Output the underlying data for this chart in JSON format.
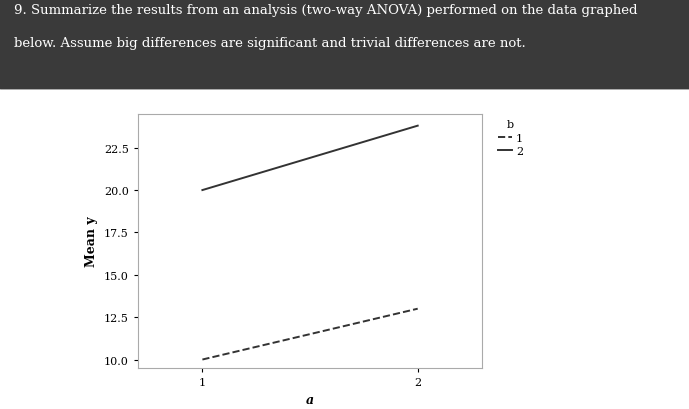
{
  "title_line1": "9. Summarize the results from an analysis (two-way ANOVA) performed on the data graphed",
  "title_line2": "below. Assume big differences are significant and trivial differences are not.",
  "xlabel": "a",
  "ylabel": "Mean y",
  "ylim": [
    9.5,
    24.5
  ],
  "xlim": [
    0.7,
    2.3
  ],
  "xticks": [
    1,
    2
  ],
  "yticks": [
    10.0,
    12.5,
    15.0,
    17.5,
    20.0,
    22.5
  ],
  "line_solid": {
    "x": [
      1,
      2
    ],
    "y": [
      20.0,
      23.8
    ],
    "color": "#333333",
    "linestyle": "solid",
    "linewidth": 1.4,
    "label": "2"
  },
  "line_dashed": {
    "x": [
      1,
      2
    ],
    "y": [
      10.0,
      13.0
    ],
    "color": "#333333",
    "linestyle": "dashed",
    "linewidth": 1.4,
    "label": "1"
  },
  "legend_title": "b",
  "outer_bg": "#3a3a3a",
  "inner_bg": "#ffffff",
  "plot_bg": "#ffffff",
  "text_color": "#ffffff",
  "title_fontsize": 9.5,
  "axis_fontsize": 9,
  "tick_fontsize": 8,
  "legend_fontsize": 8
}
